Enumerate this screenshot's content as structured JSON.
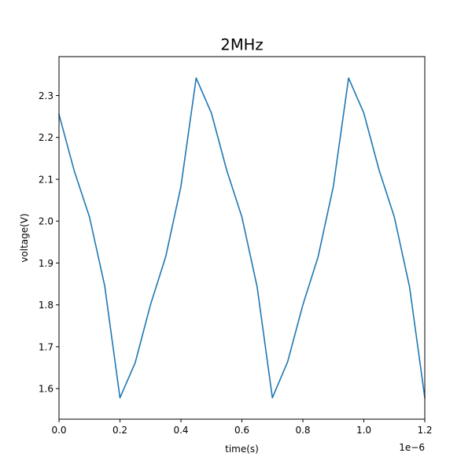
{
  "chart_data": {
    "type": "line",
    "title": "2MHz",
    "xlabel": "time(s)",
    "ylabel": "voltage(V)",
    "x_offset_label": "1e−6",
    "xlim": [
      0,
      1.2e-06
    ],
    "ylim": [
      1.527,
      2.393
    ],
    "xticks": [
      0,
      2e-07,
      4e-07,
      6e-07,
      8e-07,
      1e-06,
      1.2e-06
    ],
    "xtick_labels": [
      "0.0",
      "0.2",
      "0.4",
      "0.6",
      "0.8",
      "1.0",
      "1.2"
    ],
    "yticks": [
      1.6,
      1.7,
      1.8,
      1.9,
      2.0,
      2.1,
      2.2,
      2.3
    ],
    "ytick_labels": [
      "1.6",
      "1.7",
      "1.8",
      "1.9",
      "2.0",
      "2.1",
      "2.2",
      "2.3"
    ],
    "grid": false,
    "series": [
      {
        "color": "#1f77b4",
        "x": [
          0,
          5e-08,
          1e-07,
          1.5e-07,
          2e-07,
          2.5e-07,
          3e-07,
          3.5e-07,
          4e-07,
          4.5e-07,
          5e-07,
          5.5e-07,
          6e-07,
          6.5e-07,
          7e-07,
          7.5e-07,
          8e-07,
          8.5e-07,
          9e-07,
          9.5e-07,
          1e-06,
          1.05e-06,
          1.1e-06,
          1.15e-06,
          1.2e-06
        ],
        "y": [
          2.255,
          2.12,
          2.01,
          1.845,
          1.578,
          1.662,
          1.8,
          1.915,
          2.083,
          2.342,
          2.258,
          2.122,
          2.01,
          1.843,
          1.578,
          1.664,
          1.8,
          1.915,
          2.083,
          2.342,
          2.258,
          2.122,
          2.01,
          1.843,
          1.578
        ]
      }
    ]
  }
}
